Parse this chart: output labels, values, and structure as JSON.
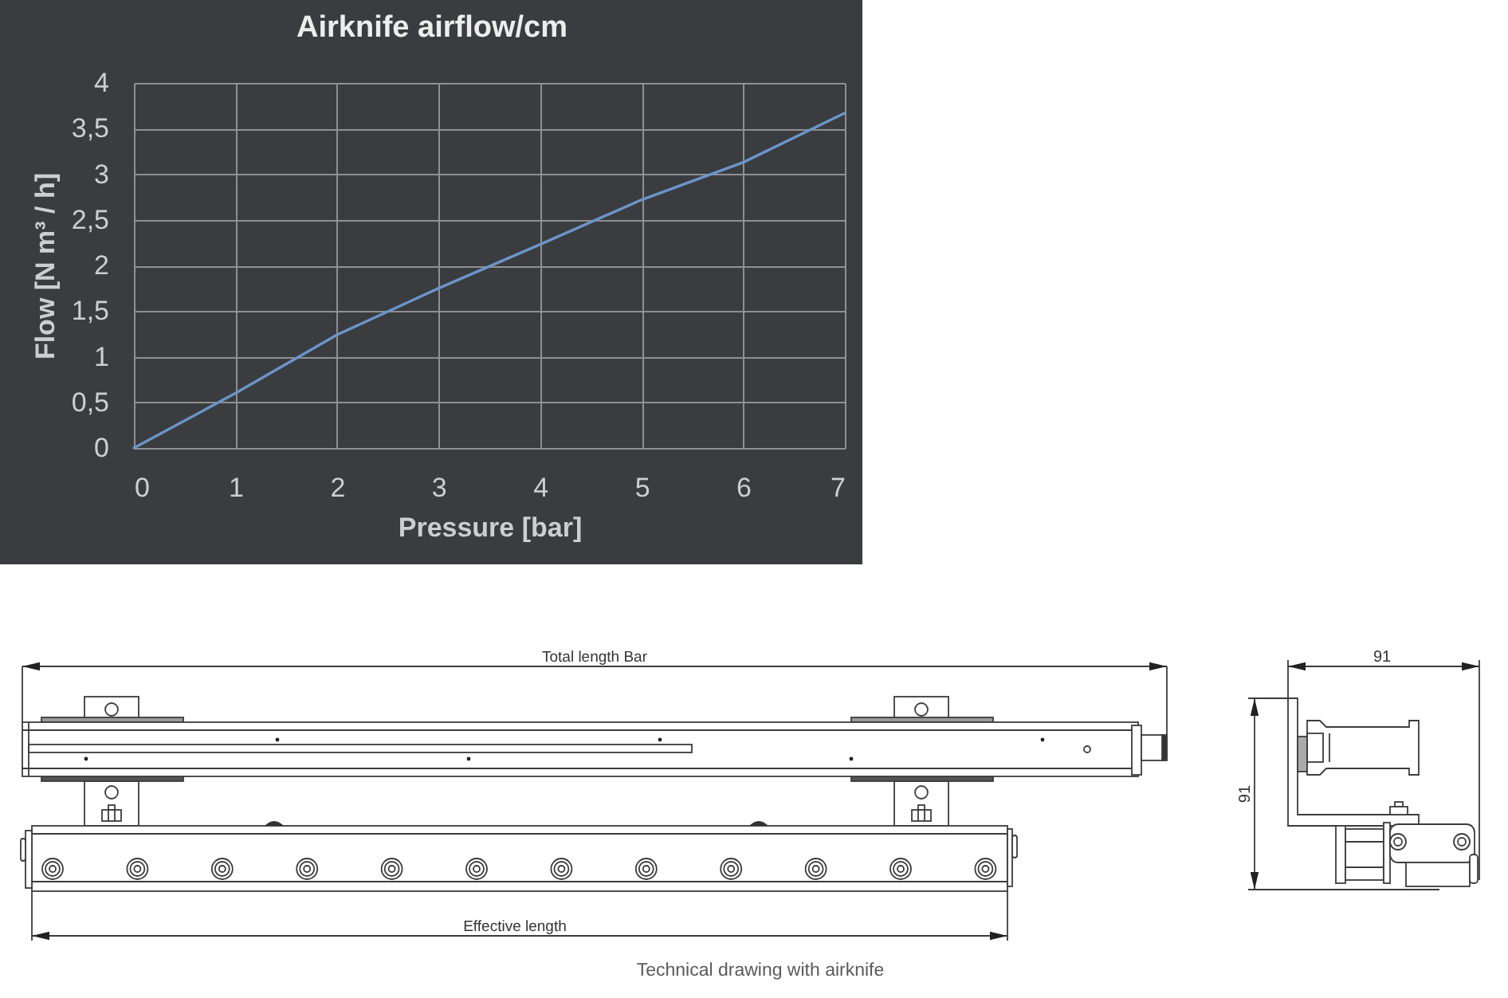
{
  "chart_data": {
    "type": "line",
    "title": "Airknife airflow/cm",
    "xlabel": "Pressure [bar]",
    "ylabel": "Flow [N m³ / h]",
    "x": [
      0,
      1,
      2,
      3,
      4,
      5,
      6,
      7
    ],
    "series": [
      {
        "color": "#6b95c9",
        "values": [
          0,
          0.6,
          1.24,
          1.75,
          2.23,
          2.72,
          3.13,
          3.67
        ]
      }
    ],
    "xlim": [
      0,
      7
    ],
    "ylim": [
      0,
      4
    ],
    "xticks": [
      0,
      1,
      2,
      3,
      4,
      5,
      6,
      7
    ],
    "yticks": [
      0,
      {
        "value": 0.5,
        "label": "0,5"
      },
      1,
      {
        "value": 1.5,
        "label": "1,5"
      },
      2,
      {
        "value": 2.5,
        "label": "2,5"
      },
      3,
      {
        "value": 3.5,
        "label": "3,5"
      },
      4
    ],
    "grid": true,
    "annotations": [
      "Total length Bar",
      "Effective length",
      "91",
      "91",
      "Technical drawing with airknife"
    ]
  }
}
